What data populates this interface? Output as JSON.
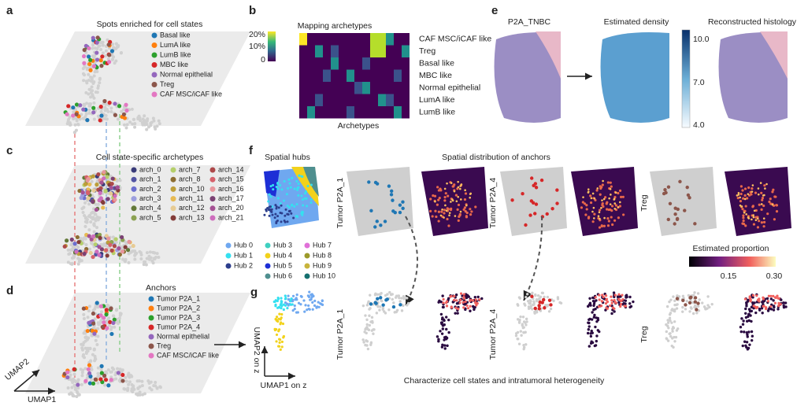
{
  "panels": {
    "a": {
      "letter": "a",
      "title": "Spots enriched for cell states",
      "legend": [
        {
          "label": "Basal like",
          "color": "#1f77b4"
        },
        {
          "label": "LumA like",
          "color": "#ff7f0e"
        },
        {
          "label": "LumB like",
          "color": "#2ca02c"
        },
        {
          "label": "MBC like",
          "color": "#d62728"
        },
        {
          "label": "Normal epithelial",
          "color": "#9467bd"
        },
        {
          "label": "Treg",
          "color": "#8c564b"
        },
        {
          "label": "CAF MSC/iCAF like",
          "color": "#e377c2"
        }
      ]
    },
    "b": {
      "letter": "b",
      "title": "Mapping archetypes",
      "x_label": "Archetypes",
      "rows": [
        "CAF MSC/iCAF like",
        "Treg",
        "Basal like",
        "MBC like",
        "Normal epithelial",
        "LumA like",
        "LumB like"
      ],
      "colorbar": [
        "20%",
        "10%",
        "0"
      ]
    },
    "c": {
      "letter": "c",
      "title": "Cell state-specific archetypes",
      "legend": [
        {
          "label": "arch_0",
          "color": "#393b79"
        },
        {
          "label": "arch_1",
          "color": "#5254a3"
        },
        {
          "label": "arch_2",
          "color": "#6b6ecf"
        },
        {
          "label": "arch_3",
          "color": "#9c9ede"
        },
        {
          "label": "arch_4",
          "color": "#637939"
        },
        {
          "label": "arch_5",
          "color": "#8ca252"
        },
        {
          "label": "arch_7",
          "color": "#b5cf6b"
        },
        {
          "label": "arch_8",
          "color": "#8c6d31"
        },
        {
          "label": "arch_10",
          "color": "#bd9e39"
        },
        {
          "label": "arch_11",
          "color": "#e7ba52"
        },
        {
          "label": "arch_12",
          "color": "#e7cb94"
        },
        {
          "label": "arch_13",
          "color": "#843c39"
        },
        {
          "label": "arch_14",
          "color": "#ad494a"
        },
        {
          "label": "arch_15",
          "color": "#d6616b"
        },
        {
          "label": "arch_16",
          "color": "#e7969c"
        },
        {
          "label": "arch_17",
          "color": "#7b4173"
        },
        {
          "label": "arch_20",
          "color": "#a55194"
        },
        {
          "label": "arch_21",
          "color": "#ce6dbd"
        }
      ]
    },
    "d": {
      "letter": "d",
      "title": "Anchors",
      "x_axis": "UMAP1",
      "y_axis": "UMAP2",
      "legend": [
        {
          "label": "Tumor P2A_1",
          "color": "#1f77b4"
        },
        {
          "label": "Tumor P2A_2",
          "color": "#ff7f0e"
        },
        {
          "label": "Tumor P2A_3",
          "color": "#2ca02c"
        },
        {
          "label": "Tumor P2A_4",
          "color": "#d62728"
        },
        {
          "label": "Normal epithelial",
          "color": "#9467bd"
        },
        {
          "label": "Treg",
          "color": "#8c564b"
        },
        {
          "label": "CAF MSC/iCAF like",
          "color": "#e377c2"
        }
      ]
    },
    "e": {
      "letter": "e",
      "titles": [
        "P2A_TNBC",
        "Estimated density",
        "Reconstructed histology"
      ],
      "colorbar": [
        "10.0",
        "7.0",
        "4.0"
      ]
    },
    "f": {
      "letter": "f",
      "hubs_title": "Spatial hubs",
      "anchors_title": "Spatial distribution of anchors",
      "hubs": [
        {
          "label": "Hub 0",
          "color": "#6fa8f0"
        },
        {
          "label": "Hub 1",
          "color": "#35e0f0"
        },
        {
          "label": "Hub 2",
          "color": "#2c3e8c"
        },
        {
          "label": "Hub 3",
          "color": "#3fd0c0"
        },
        {
          "label": "Hub 4",
          "color": "#f2d21b"
        },
        {
          "label": "Hub 5",
          "color": "#1d2fd6"
        },
        {
          "label": "Hub 6",
          "color": "#4f8f8f"
        },
        {
          "label": "Hub 7",
          "color": "#e070d8"
        },
        {
          "label": "Hub 8",
          "color": "#9c9a2a"
        },
        {
          "label": "Hub 9",
          "color": "#c8b43c"
        },
        {
          "label": "Hub 10",
          "color": "#15706f"
        }
      ],
      "row_labels": [
        "Tumor P2A_1",
        "Tumor P2A_4",
        "Treg"
      ],
      "colorbar_title": "Estimated proportion",
      "colorbar": [
        "0.15",
        "0.30"
      ]
    },
    "g": {
      "letter": "g",
      "x_label": "UMAP1 on z",
      "y_label": "UMAP2 on z",
      "row_labels": [
        "Tumor P2A_1",
        "Tumor P2A_4",
        "Treg"
      ],
      "caption": "Characterize cell states and intratumoral heterogeneity"
    }
  }
}
